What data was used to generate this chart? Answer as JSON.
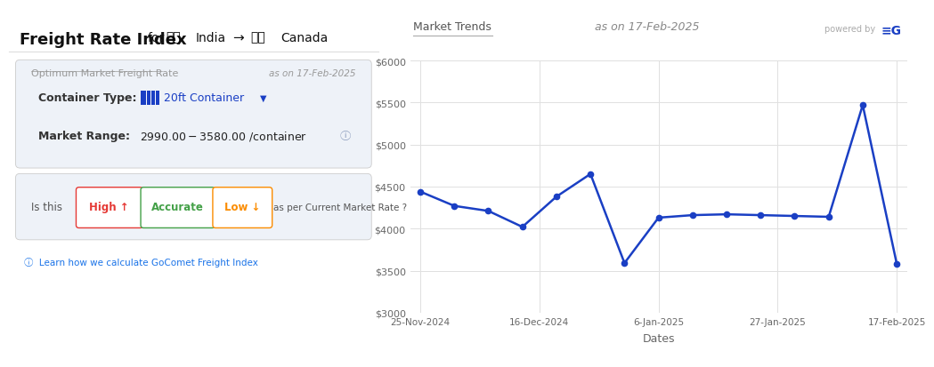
{
  "title_left": "Freight Rate Index",
  "title_for": "for",
  "title_india": "India",
  "title_canada": "Canada",
  "chart_title": "Market Trends",
  "chart_subtitle": "as on 17-Feb-2025",
  "panel_title": "Optimum Market Freight Rate",
  "panel_date": "as on 17-Feb-2025",
  "container_label": "Container Type:",
  "container_value": "20ft Container",
  "market_label": "Market Range:",
  "market_value": "$2990.00 - $3580.00 /container",
  "feedback_label": "Is this",
  "high_label": "High ↑",
  "accurate_label": "Accurate",
  "low_label": "Low ↓",
  "market_rate_label": "as per Current Market Rate ?",
  "learn_label": "ⓘ  Learn how we calculate GoComet Freight Index",
  "powered_label": "powered by",
  "x_label": "Dates",
  "x_ticks": [
    "25-Nov-2024",
    "16-Dec-2024",
    "6-Jan-2025",
    "27-Jan-2025",
    "17-Feb-2025"
  ],
  "y_ticks": [
    3000,
    3500,
    4000,
    4500,
    5000,
    5500,
    6000
  ],
  "y_tick_labels": [
    "$3000",
    "$3500",
    "$4000",
    "$4500",
    "$5000",
    "$5500",
    "$6000"
  ],
  "values": [
    4440,
    4270,
    4210,
    4020,
    4380,
    4650,
    3590,
    4130,
    4160,
    4170,
    4160,
    4150,
    4140,
    5470,
    3580
  ],
  "line_color": "#1a3fc4",
  "marker_color": "#1a3fc4",
  "bg_color": "#ffffff",
  "panel_bg": "#eef2f8",
  "grid_color": "#e0e0e0",
  "axis_text_color": "#666666",
  "high_color": "#e53935",
  "accurate_color": "#43a047",
  "low_color": "#fb8c00",
  "panel_title_color": "#999999",
  "panel_date_color": "#999999",
  "chart_title_color": "#555555",
  "chart_subtitle_color": "#888888",
  "header_title_color": "#111111",
  "link_color": "#1a73e8",
  "divider_color": "#dddddd"
}
